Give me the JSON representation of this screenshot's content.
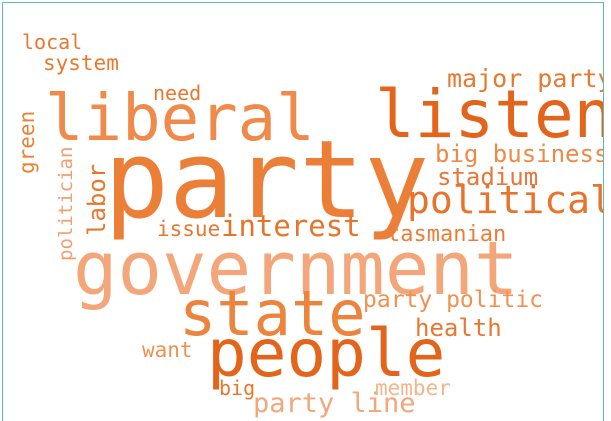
{
  "wordcloud": {
    "words": [
      {
        "text": "local",
        "color": "#e8782f"
      },
      {
        "text": "system",
        "color": "#e87a2c"
      },
      {
        "text": "need",
        "color": "#e8782f"
      },
      {
        "text": "major party",
        "color": "#e67a30"
      },
      {
        "text": "liberal",
        "color": "#ef8a4a"
      },
      {
        "text": "listen",
        "color": "#e2651b"
      },
      {
        "text": "green",
        "color": "#ea8135"
      },
      {
        "text": "politician",
        "color": "#f0a070"
      },
      {
        "text": "labor",
        "color": "#e8772c"
      },
      {
        "text": "party",
        "color": "#ec7f38"
      },
      {
        "text": "big business",
        "color": "#ee8a45"
      },
      {
        "text": "stadium",
        "color": "#e9773a"
      },
      {
        "text": "political",
        "color": "#e7742a"
      },
      {
        "text": "issue",
        "color": "#e8782f"
      },
      {
        "text": "interest",
        "color": "#e7742a"
      },
      {
        "text": "tasmanian",
        "color": "#ea7e36"
      },
      {
        "text": "government",
        "color": "#f2a67a"
      },
      {
        "text": "state",
        "color": "#ed843d"
      },
      {
        "text": "party politic",
        "color": "#f0924f"
      },
      {
        "text": "health",
        "color": "#e8782f"
      },
      {
        "text": "want",
        "color": "#f0924f"
      },
      {
        "text": "people",
        "color": "#e2651b"
      },
      {
        "text": "big",
        "color": "#e8772c"
      },
      {
        "text": "member",
        "color": "#f5b48a"
      },
      {
        "text": "party line",
        "color": "#f2a67a"
      }
    ]
  }
}
